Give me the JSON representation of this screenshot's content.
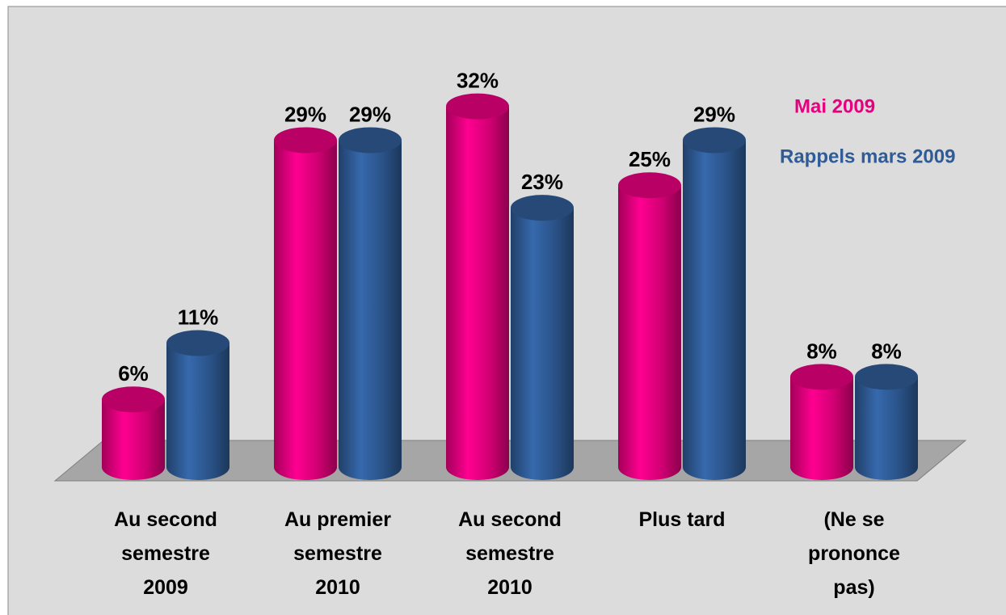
{
  "chart_data": {
    "type": "bar3d",
    "categories": [
      "Au second semestre 2009",
      "Au premier semestre 2010",
      "Au second semestre 2010",
      "Plus tard",
      "(Ne se prononce pas)"
    ],
    "series": [
      {
        "name": "Mai 2009",
        "color": "#e6007e",
        "values": [
          6,
          29,
          32,
          25,
          8
        ],
        "value_labels": [
          "6%",
          "29%",
          "32%",
          "25%",
          "8%"
        ]
      },
      {
        "name": "Rappels mars 2009",
        "color": "#2f5b96",
        "values": [
          11,
          29,
          23,
          29,
          8
        ],
        "value_labels": [
          "11%",
          "29%",
          "23%",
          "29%",
          "8%"
        ]
      }
    ],
    "ylim": [
      0,
      40
    ]
  }
}
